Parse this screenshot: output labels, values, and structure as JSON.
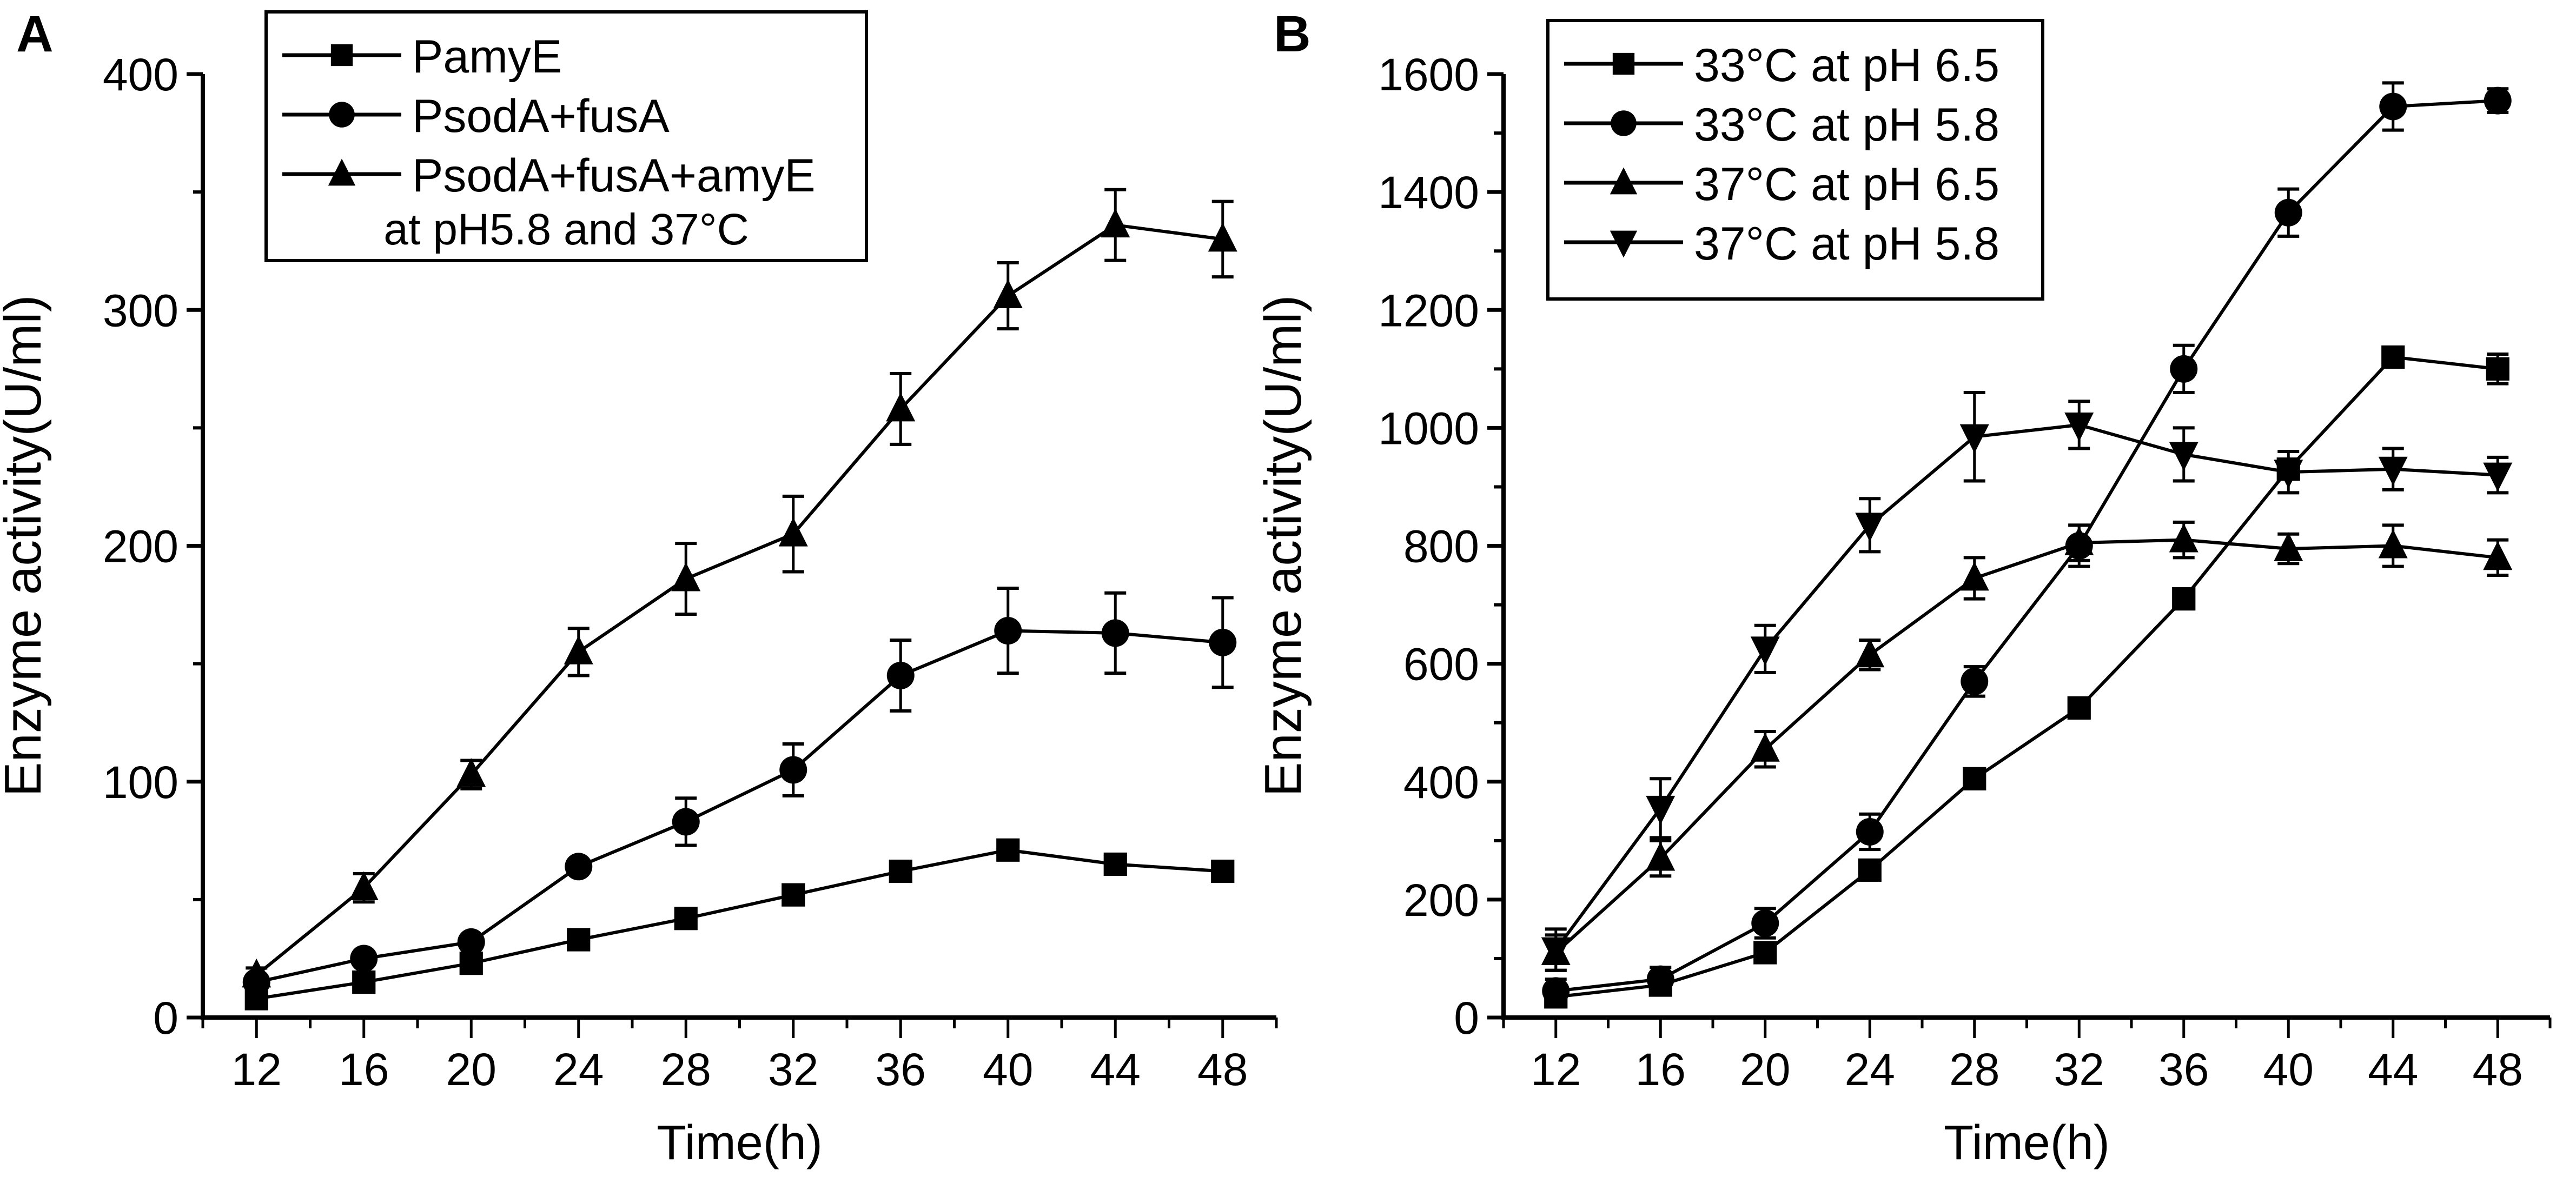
{
  "chart_data": [
    {
      "panel_label": "A",
      "type": "line",
      "title": "",
      "xlabel": "Time(h)",
      "ylabel": "Enzyme activity(U/ml)",
      "x": [
        12,
        16,
        20,
        24,
        28,
        32,
        36,
        40,
        44,
        48
      ],
      "xticks": [
        "12",
        "16",
        "20",
        "24",
        "28",
        "32",
        "36",
        "40",
        "44",
        "48"
      ],
      "xlim": [
        10,
        50
      ],
      "ylim": [
        0,
        400
      ],
      "yticks": [
        "0",
        "100",
        "200",
        "300",
        "400"
      ],
      "yticks_values": [
        0,
        100,
        200,
        300,
        400
      ],
      "grid": false,
      "legend_position": "top-left",
      "legend_note": "at pH5.8 and 37°C",
      "series": [
        {
          "name": "PamyE",
          "marker": "square",
          "values": [
            8,
            15,
            23,
            33,
            42,
            52,
            62,
            71,
            65,
            62
          ],
          "errors": [
            0,
            0,
            0,
            0,
            0,
            0,
            0,
            0,
            0,
            0
          ]
        },
        {
          "name": "PsodA+fusA",
          "marker": "circle",
          "values": [
            15,
            25,
            32,
            64,
            83,
            105,
            145,
            164,
            163,
            159
          ],
          "errors": [
            0,
            0,
            0,
            0,
            10,
            11,
            15,
            18,
            17,
            19
          ]
        },
        {
          "name": "PsodA+fusA+amyE",
          "marker": "triangle-up",
          "values": [
            18,
            55,
            103,
            155,
            186,
            205,
            258,
            306,
            336,
            330
          ],
          "errors": [
            3,
            6,
            6,
            10,
            15,
            16,
            15,
            14,
            15,
            16
          ]
        }
      ]
    },
    {
      "panel_label": "B",
      "type": "line",
      "title": "",
      "xlabel": "Time(h)",
      "ylabel": "Enzyme activity(U/ml)",
      "x": [
        12,
        16,
        20,
        24,
        28,
        32,
        36,
        40,
        44,
        48
      ],
      "xticks": [
        "12",
        "16",
        "20",
        "24",
        "28",
        "32",
        "36",
        "40",
        "44",
        "48"
      ],
      "xlim": [
        10,
        50
      ],
      "ylim": [
        0,
        1600
      ],
      "yticks": [
        "0",
        "200",
        "400",
        "600",
        "800",
        "1000",
        "1200",
        "1400",
        "1600"
      ],
      "yticks_values": [
        0,
        200,
        400,
        600,
        800,
        1000,
        1200,
        1400,
        1600
      ],
      "grid": false,
      "legend_position": "top-left",
      "series": [
        {
          "name": "33°C at pH 6.5",
          "marker": "square",
          "values": [
            35,
            55,
            110,
            250,
            405,
            525,
            710,
            930,
            1120,
            1100
          ],
          "errors": [
            10,
            10,
            10,
            15,
            10,
            10,
            10,
            15,
            15,
            25
          ]
        },
        {
          "name": "33°C at pH 5.8",
          "marker": "circle",
          "values": [
            45,
            65,
            160,
            315,
            570,
            800,
            1100,
            1365,
            1545,
            1555
          ],
          "errors": [
            20,
            20,
            25,
            30,
            25,
            35,
            40,
            40,
            40,
            20
          ]
        },
        {
          "name": "37°C at pH 6.5",
          "marker": "triangle-up",
          "values": [
            110,
            270,
            455,
            615,
            745,
            805,
            810,
            795,
            800,
            780
          ],
          "errors": [
            30,
            30,
            30,
            25,
            35,
            30,
            30,
            25,
            35,
            30
          ]
        },
        {
          "name": "37°C at pH 5.8",
          "marker": "triangle-down",
          "values": [
            115,
            355,
            625,
            835,
            985,
            1005,
            955,
            925,
            930,
            920
          ],
          "errors": [
            35,
            50,
            40,
            45,
            75,
            40,
            45,
            35,
            35,
            30
          ]
        }
      ]
    }
  ]
}
